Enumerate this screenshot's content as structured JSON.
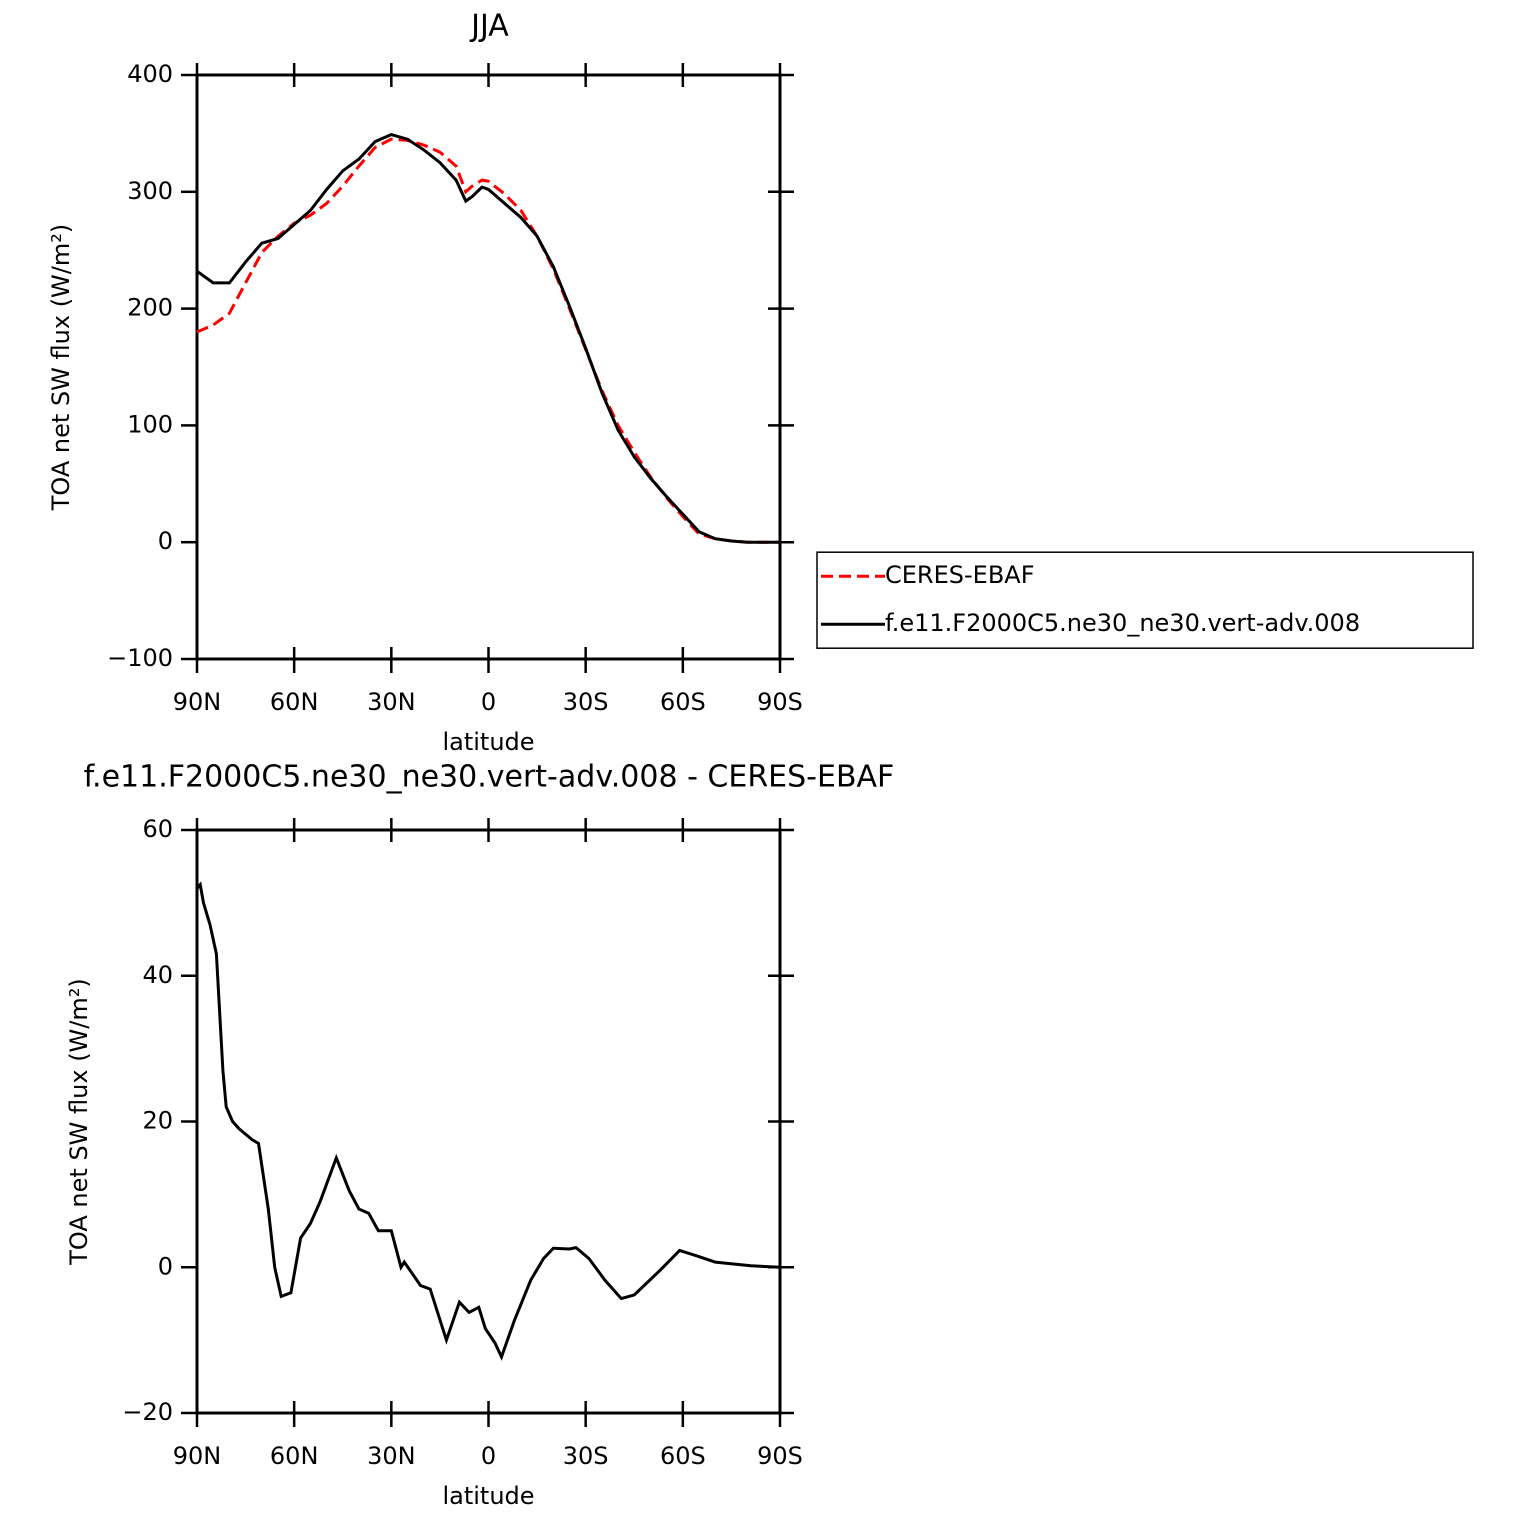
{
  "chart_data": [
    {
      "type": "line",
      "title": "JJA",
      "x_label": "latitude",
      "y_label": "TOA net SW flux (W/m²)",
      "x": [
        90,
        85,
        80,
        75,
        70,
        65,
        60,
        55,
        50,
        45,
        40,
        35,
        30,
        25,
        20,
        15,
        10,
        7,
        5,
        2,
        0,
        -5,
        -10,
        -15,
        -20,
        -25,
        -30,
        -35,
        -40,
        -45,
        -50,
        -55,
        -60,
        -65,
        -70,
        -75,
        -80,
        -85,
        -90
      ],
      "series": [
        {
          "name": "CERES-EBAF",
          "color": "#ff0000",
          "style": "dashed",
          "values": [
            180,
            186,
            196,
            222,
            248,
            262,
            273,
            280,
            290,
            305,
            322,
            338,
            345,
            344,
            340,
            334,
            322,
            300,
            305,
            310,
            309,
            298,
            284,
            262,
            234,
            200,
            165,
            130,
            100,
            77,
            56,
            38,
            22,
            7,
            3,
            1,
            0,
            0,
            0
          ]
        },
        {
          "name": "f.e11.F2000C5.ne30_ne30.vert-adv.008",
          "color": "#000000",
          "style": "solid",
          "values": [
            232,
            222,
            222,
            240,
            256,
            260,
            272,
            284,
            302,
            318,
            328,
            343,
            349,
            345,
            336,
            325,
            310,
            292,
            296,
            304,
            302,
            290,
            278,
            262,
            236,
            202,
            166,
            128,
            96,
            73,
            55,
            39,
            24,
            9,
            3,
            1,
            0,
            0,
            0
          ]
        }
      ],
      "xlim": [
        90,
        -90
      ],
      "xticks": [
        {
          "value": 90,
          "label": "90N"
        },
        {
          "value": 60,
          "label": "60N"
        },
        {
          "value": 30,
          "label": "30N"
        },
        0,
        {
          "value": -30,
          "label": "30S"
        },
        {
          "value": -60,
          "label": "60S"
        },
        {
          "value": -90,
          "label": "90S"
        }
      ],
      "ylim": [
        -100,
        400
      ],
      "yticks": [
        {
          "value": -100,
          "label": "−100"
        },
        0,
        100,
        200,
        300,
        400
      ],
      "legend": "right"
    },
    {
      "type": "line",
      "title": "f.e11.F2000C5.ne30_ne30.vert-adv.008 - CERES-EBAF",
      "x_label": "latitude",
      "y_label": "TOA net SW flux (W/m²)",
      "x": [
        90,
        89,
        88,
        86,
        84,
        82,
        81,
        79,
        77,
        73,
        71,
        68,
        66,
        64,
        61,
        58,
        55,
        52,
        47,
        43,
        40,
        37,
        34,
        30,
        27,
        26,
        21,
        18,
        13,
        9,
        6,
        3,
        1,
        -2,
        -4,
        -8,
        -13,
        -17,
        -20,
        -25,
        -27,
        -31,
        -36,
        -41,
        -45,
        -53,
        -59,
        -64,
        -70,
        -81,
        -90
      ],
      "values": [
        52,
        52.5,
        50,
        47,
        43,
        27,
        22,
        20,
        19,
        17.5,
        17,
        8,
        0,
        -4,
        -3.5,
        4,
        6,
        9,
        15,
        10.5,
        8,
        7.4,
        5,
        5,
        0,
        0.7,
        -2.5,
        -3,
        -10,
        -4.8,
        -6.2,
        -5.5,
        -8.4,
        -10.4,
        -12.3,
        -7.3,
        -1.8,
        1.2,
        2.6,
        2.5,
        2.7,
        1.2,
        -1.8,
        -4.3,
        -3.8,
        -0.4,
        2.3,
        1.6,
        0.7,
        0.2,
        0
      ],
      "color": "#000000",
      "xlim": [
        90,
        -90
      ],
      "xticks": [
        {
          "value": 90,
          "label": "90N"
        },
        {
          "value": 60,
          "label": "60N"
        },
        {
          "value": 30,
          "label": "30N"
        },
        0,
        {
          "value": -30,
          "label": "30S"
        },
        {
          "value": -60,
          "label": "60S"
        },
        {
          "value": -90,
          "label": "90S"
        }
      ],
      "ylim": [
        -20,
        60
      ],
      "yticks": [
        {
          "value": -20,
          "label": "−20"
        },
        0,
        20,
        40,
        60
      ]
    }
  ]
}
